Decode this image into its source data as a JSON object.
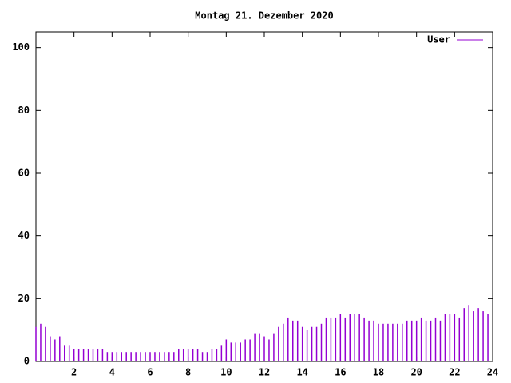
{
  "chart_data": {
    "type": "impulse",
    "title": "Montag 21. Dezember 2020",
    "x": [
      0,
      0.25,
      0.5,
      0.75,
      1,
      1.25,
      1.5,
      1.75,
      2,
      2.25,
      2.5,
      2.75,
      3,
      3.25,
      3.5,
      3.75,
      4,
      4.25,
      4.5,
      4.75,
      5,
      5.25,
      5.5,
      5.75,
      6,
      6.25,
      6.5,
      6.75,
      7,
      7.25,
      7.5,
      7.75,
      8,
      8.25,
      8.5,
      8.75,
      9,
      9.25,
      9.5,
      9.75,
      10,
      10.25,
      10.5,
      10.75,
      11,
      11.25,
      11.5,
      11.75,
      12,
      12.25,
      12.5,
      12.75,
      13,
      13.25,
      13.5,
      13.75,
      14,
      14.25,
      14.5,
      14.75,
      15,
      15.25,
      15.5,
      15.75,
      16,
      16.25,
      16.5,
      16.75,
      17,
      17.25,
      17.5,
      17.75,
      18,
      18.25,
      18.5,
      18.75,
      19,
      19.25,
      19.5,
      19.75,
      20,
      20.25,
      20.5,
      20.75,
      21,
      21.25,
      21.5,
      21.75,
      22,
      22.25,
      22.5,
      22.75,
      23,
      23.25,
      23.5,
      23.75
    ],
    "series": [
      {
        "name": "User",
        "color": "#9400d3",
        "values": [
          11,
          12,
          11,
          8,
          7,
          8,
          5,
          5,
          4,
          4,
          4,
          4,
          4,
          4,
          4,
          3,
          3,
          3,
          3,
          3,
          3,
          3,
          3,
          3,
          3,
          3,
          3,
          3,
          3,
          3,
          4,
          4,
          4,
          4,
          4,
          3,
          3,
          4,
          4,
          5,
          7,
          6,
          6,
          6,
          7,
          7,
          9,
          9,
          8,
          7,
          9,
          11,
          12,
          14,
          13,
          13,
          11,
          10,
          11,
          11,
          12,
          14,
          14,
          14,
          15,
          14,
          15,
          15,
          15,
          14,
          13,
          13,
          12,
          12,
          12,
          12,
          12,
          12,
          13,
          13,
          13,
          14,
          13,
          13,
          14,
          13,
          15,
          15,
          15,
          14,
          17,
          18,
          16,
          17,
          16,
          15
        ]
      }
    ],
    "xlim": [
      0,
      24
    ],
    "xticks": [
      2,
      4,
      6,
      8,
      10,
      12,
      14,
      16,
      18,
      20,
      22,
      24
    ],
    "ylim": [
      0,
      105
    ],
    "yticks": [
      0,
      20,
      40,
      60,
      80,
      100
    ],
    "legend": "top-right"
  }
}
